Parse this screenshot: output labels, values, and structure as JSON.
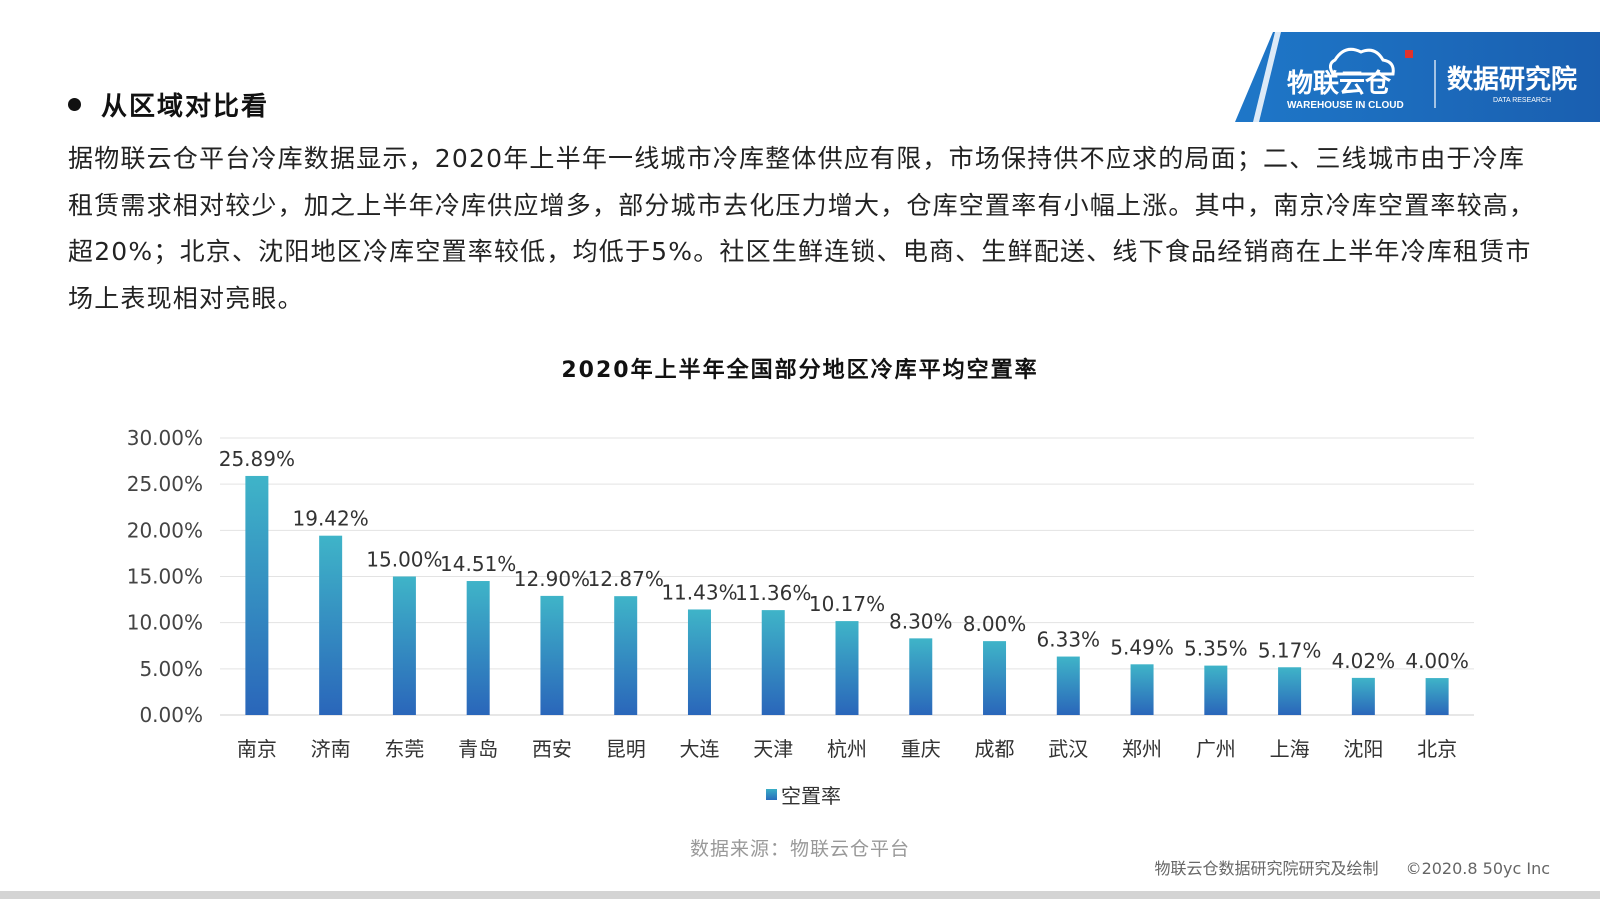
{
  "logo": {
    "brand": "物联云仓",
    "brand_sub": "WAREHOUSE IN CLOUD",
    "research": "数据研究院",
    "research_sub": "DATA RESEARCH"
  },
  "section": {
    "title": "从区域对比看"
  },
  "intro": {
    "paragraph": "据物联云仓平台冷库数据显示，2020年上半年一线城市冷库整体供应有限，市场保持供不应求的局面；二、三线城市由于冷库租赁需求相对较少，加之上半年冷库供应增多，部分城市去化压力增大，仓库空置率有小幅上涨。其中，南京冷库空置率较高，超20%；北京、沈阳地区冷库空置率较低，均低于5%。社区生鲜连锁、电商、生鲜配送、线下食品经销商在上半年冷库租赁市场上表现相对亮眼。"
  },
  "chart_data": {
    "type": "bar",
    "title": "2020年上半年全国部分地区冷库平均空置率",
    "categories": [
      "南京",
      "济南",
      "东莞",
      "青岛",
      "西安",
      "昆明",
      "大连",
      "天津",
      "杭州",
      "重庆",
      "成都",
      "武汉",
      "郑州",
      "广州",
      "上海",
      "沈阳",
      "北京"
    ],
    "series": [
      {
        "name": "空置率",
        "values": [
          25.89,
          19.42,
          15.0,
          14.51,
          12.9,
          12.87,
          11.43,
          11.36,
          10.17,
          8.3,
          8.0,
          6.33,
          5.49,
          5.35,
          5.17,
          4.02,
          4.0
        ]
      }
    ],
    "data_labels": [
      "25.89%",
      "19.42%",
      "15.00%",
      "14.51%",
      "12.90%",
      "12.87%",
      "11.43%",
      "11.36%",
      "10.17%",
      "8.30%",
      "8.00%",
      "6.33%",
      "5.49%",
      "5.35%",
      "5.17%",
      "4.02%",
      "4.00%"
    ],
    "y_ticks": [
      "0.00%",
      "5.00%",
      "10.00%",
      "15.00%",
      "20.00%",
      "25.00%",
      "30.00%"
    ],
    "ylim": [
      0,
      30
    ],
    "grid": true,
    "legend_position": "bottom",
    "colors": {
      "bar_top": "#3fb4c8",
      "bar_bottom": "#2a66ba"
    }
  },
  "source": "数据来源：物联云仓平台",
  "footer": {
    "credit": "物联云仓数据研究院研究及绘制",
    "copyright": "©2020.8 50yc Inc"
  }
}
